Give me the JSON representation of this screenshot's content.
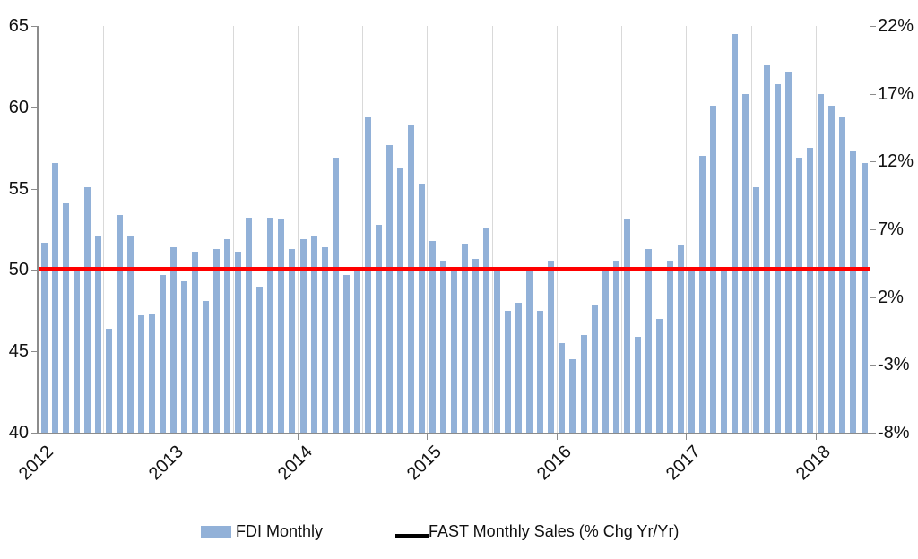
{
  "chart_data": {
    "type": "bar+line",
    "categories": [
      "2012-01",
      "2012-02",
      "2012-03",
      "2012-04",
      "2012-05",
      "2012-06",
      "2012-07",
      "2012-08",
      "2012-09",
      "2012-10",
      "2012-11",
      "2012-12",
      "2013-01",
      "2013-02",
      "2013-03",
      "2013-04",
      "2013-05",
      "2013-06",
      "2013-07",
      "2013-08",
      "2013-09",
      "2013-10",
      "2013-11",
      "2013-12",
      "2014-01",
      "2014-02",
      "2014-03",
      "2014-04",
      "2014-05",
      "2014-06",
      "2014-07",
      "2014-08",
      "2014-09",
      "2014-10",
      "2014-11",
      "2014-12",
      "2015-01",
      "2015-02",
      "2015-03",
      "2015-04",
      "2015-05",
      "2015-06",
      "2015-07",
      "2015-08",
      "2015-09",
      "2015-10",
      "2015-11",
      "2015-12",
      "2016-01",
      "2016-02",
      "2016-03",
      "2016-04",
      "2016-05",
      "2016-06",
      "2016-07",
      "2016-08",
      "2016-09",
      "2016-10",
      "2016-11",
      "2016-12",
      "2017-01",
      "2017-02",
      "2017-03",
      "2017-04",
      "2017-05",
      "2017-06",
      "2017-07",
      "2017-08",
      "2017-09",
      "2017-10",
      "2017-11",
      "2017-12",
      "2018-01",
      "2018-02",
      "2018-03",
      "2018-04",
      "2018-05"
    ],
    "series": [
      {
        "name": "FDI Monthly",
        "type": "bar",
        "axis": "left",
        "color": "#92B1D8",
        "values": [
          51.7,
          56.6,
          54.1,
          50.2,
          55.1,
          52.1,
          46.4,
          53.4,
          52.1,
          47.2,
          47.3,
          49.7,
          51.4,
          49.3,
          51.1,
          48.1,
          51.3,
          51.9,
          51.1,
          53.2,
          49.0,
          53.2,
          53.1,
          51.3,
          51.9,
          52.1,
          51.4,
          56.9,
          49.7,
          50.0,
          59.4,
          52.8,
          57.7,
          56.3,
          58.9,
          55.3,
          51.8,
          50.6,
          50.1,
          51.6,
          50.7,
          52.6,
          49.9,
          47.5,
          48.0,
          49.9,
          47.5,
          50.6,
          45.5,
          44.5,
          46.0,
          47.8,
          49.9,
          50.6,
          53.1,
          45.9,
          51.3,
          47.0,
          50.6,
          51.5,
          50.1,
          57.0,
          60.1,
          50.2,
          64.5,
          60.8,
          55.1,
          62.6,
          61.4,
          62.2,
          56.9,
          57.5,
          60.8,
          60.1,
          59.4,
          57.3,
          56.6
        ]
      },
      {
        "name": "FAST Monthly Sales (% Chg Yr/Yr)",
        "type": "line",
        "axis": "right",
        "color": "#FF0000",
        "legend_swatch_color": "#000000",
        "flat_value_pct": 4.1
      }
    ],
    "left_axis": {
      "min": 40,
      "max": 65,
      "tick_labels": [
        "65",
        "60",
        "55",
        "50",
        "45",
        "40"
      ],
      "tick_values": [
        65,
        60,
        55,
        50,
        45,
        40
      ]
    },
    "right_axis": {
      "min": -8,
      "max": 22,
      "tick_labels": [
        "22%",
        "17%",
        "12%",
        "7%",
        "2%",
        "-3%",
        "-8%"
      ],
      "tick_values": [
        22,
        17,
        12,
        7,
        2,
        -3,
        -8
      ]
    },
    "x_axis": {
      "year_labels": [
        "2012",
        "2013",
        "2014",
        "2015",
        "2016",
        "2017",
        "2018"
      ],
      "gridline_interval_months": 6
    },
    "legend": [
      {
        "label": "FDI Monthly"
      },
      {
        "label": "FAST Monthly Sales (% Chg Yr/Yr)"
      }
    ],
    "layout": {
      "gridlines": "vertical-only",
      "legend_position": "bottom"
    },
    "colors": {
      "gridline": "#D9D9D9",
      "axis": "#8C8C8C",
      "text": "#111111",
      "background": "#FFFFFF"
    }
  }
}
